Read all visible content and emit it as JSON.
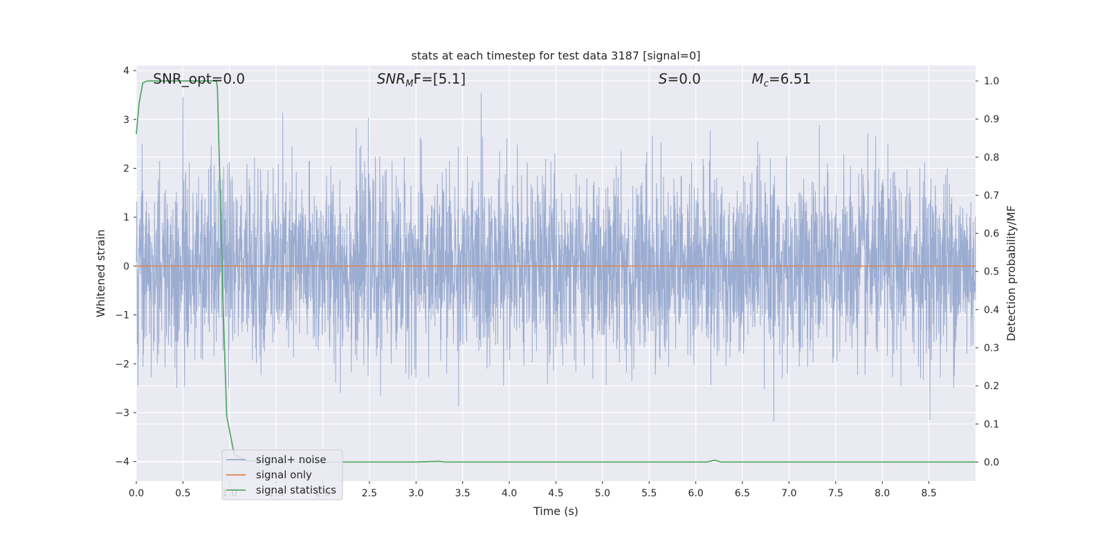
{
  "chart_data": {
    "type": "line",
    "title": "stats at each timestep for test data 3187 [signal=0]",
    "xlabel": "Time (s)",
    "ylabel": "Whitened strain",
    "y2label": "Detection probability/MF",
    "xlim": [
      0.0,
      9.0
    ],
    "ylim": [
      -4.4,
      4.1
    ],
    "y2lim": [
      -0.05,
      1.04
    ],
    "xticks": [
      0.0,
      0.5,
      1.0,
      1.5,
      2.0,
      2.5,
      3.0,
      3.5,
      4.0,
      4.5,
      5.0,
      5.5,
      6.0,
      6.5,
      7.0,
      7.5,
      8.0,
      8.5
    ],
    "xtick_labels": [
      "0.0",
      "0.5",
      "1.0",
      "1.5",
      "2.0",
      "2.5",
      "3.0",
      "3.5",
      "4.0",
      "4.5",
      "5.0",
      "5.5",
      "6.0",
      "6.5",
      "7.0",
      "7.5",
      "8.0",
      "8.5"
    ],
    "yticks": [
      -4,
      -3,
      -2,
      -1,
      0,
      1,
      2,
      3,
      4
    ],
    "ytick_labels": [
      "−4",
      "−3",
      "−2",
      "−1",
      "0",
      "1",
      "2",
      "3",
      "4"
    ],
    "y2ticks": [
      0.0,
      0.1,
      0.2,
      0.3,
      0.4,
      0.5,
      0.6,
      0.7,
      0.8,
      0.9,
      1.0
    ],
    "y2tick_labels": [
      "0.0",
      "0.1",
      "0.2",
      "0.3",
      "0.4",
      "0.5",
      "0.6",
      "0.7",
      "0.8",
      "0.9",
      "1.0"
    ],
    "grid": true,
    "legend_placement": "lower-left",
    "annotations": [
      {
        "prefix": "SNR_opt=0.0",
        "base": "",
        "sub": "",
        "suffix": "",
        "x": 0.18
      },
      {
        "prefix": "",
        "base": "SNR",
        "sub": "M",
        "suffix": "F=[5.1]",
        "x": 2.58
      },
      {
        "prefix": "",
        "base": "S",
        "sub": "",
        "suffix": "=0.0",
        "x": 5.6
      },
      {
        "prefix": "",
        "base": "M",
        "sub": "c",
        "suffix": "=6.51",
        "x": 6.6
      }
    ],
    "series": [
      {
        "name": "signal+ noise",
        "axis": "left",
        "color": "#97a9cf",
        "description": "whitened noise time series, roughly within ±2 with peaks to about ±3.7",
        "envelope": {
          "typical_abs": 1.7,
          "peak_max": 3.72,
          "peak_min": -3.35
        }
      },
      {
        "name": "signal only",
        "axis": "left",
        "color": "#dd8452",
        "x": [
          0.0,
          9.0
        ],
        "y": [
          0.0,
          0.0
        ]
      },
      {
        "name": "signal statistics",
        "axis": "right",
        "color": "#55a868",
        "x": [
          0.0,
          0.03,
          0.07,
          0.12,
          0.2,
          0.5,
          0.86,
          0.87,
          0.9,
          0.93,
          0.97,
          1.05,
          1.2,
          1.5,
          2.0,
          3.0,
          3.25,
          3.3,
          3.5,
          4.0,
          5.0,
          6.0,
          6.12,
          6.2,
          6.27,
          6.5,
          7.0,
          8.0,
          9.0
        ],
        "y": [
          0.86,
          0.94,
          0.995,
          1.0,
          1.0,
          1.0,
          1.0,
          0.98,
          0.7,
          0.42,
          0.12,
          0.02,
          0.003,
          0.0,
          0.0,
          0.0,
          0.002,
          0.0,
          0.0,
          0.0,
          0.0,
          0.0,
          0.0,
          0.005,
          0.0,
          0.0,
          0.0,
          0.0,
          0.0
        ]
      }
    ],
    "background_color": "#eaeaf2",
    "grid_color": "#ffffff"
  }
}
